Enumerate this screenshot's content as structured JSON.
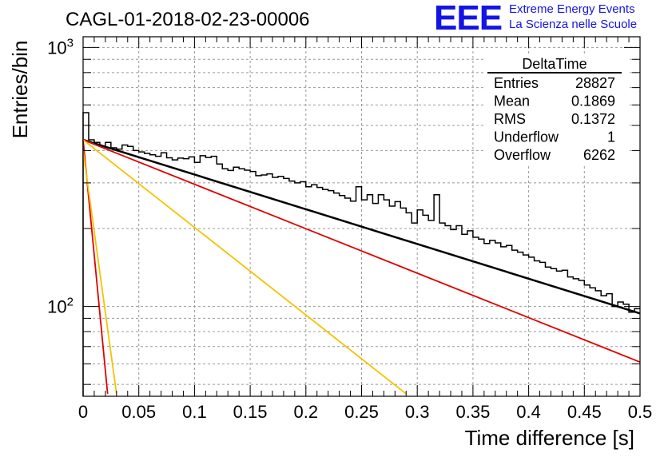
{
  "header": {
    "run_title": "CAGL-01-2018-02-23-00006",
    "logo_text": "EEE",
    "logo_line1": "Extreme Energy Events",
    "logo_line2": "La Scienza nelle Scuole"
  },
  "stats_box": {
    "title": "DeltaTime",
    "rows": [
      {
        "label": "Entries",
        "value": "28827"
      },
      {
        "label": "Mean",
        "value": "0.1869"
      },
      {
        "label": "RMS",
        "value": "0.1372"
      },
      {
        "label": "Underflow",
        "value": "1"
      },
      {
        "label": "Overflow",
        "value": "6262"
      }
    ]
  },
  "chart_data": {
    "type": "line",
    "title": "CAGL-01-2018-02-23-00006",
    "xlabel": "Time difference [s]",
    "ylabel": "Entries/bin",
    "xlim": [
      0,
      0.5
    ],
    "ylim": [
      45,
      1100
    ],
    "yscale": "log",
    "grid": true,
    "x_ticks": [
      "0",
      "0.05",
      "0.1",
      "0.15",
      "0.2",
      "0.25",
      "0.3",
      "0.35",
      "0.4",
      "0.45",
      "0.5"
    ],
    "y_ticks": [
      {
        "value": 100,
        "base": "10",
        "exp": "2"
      },
      {
        "value": 1000,
        "base": "10",
        "exp": "3"
      }
    ],
    "histogram": {
      "bin_width": 0.005,
      "values": [
        560,
        440,
        430,
        415,
        430,
        410,
        405,
        420,
        415,
        400,
        395,
        390,
        385,
        380,
        392,
        375,
        368,
        374,
        372,
        378,
        360,
        382,
        376,
        380,
        355,
        340,
        335,
        345,
        340,
        336,
        332,
        320,
        322,
        325,
        315,
        318,
        312,
        305,
        300,
        303,
        290,
        295,
        288,
        283,
        280,
        274,
        268,
        262,
        255,
        290,
        258,
        270,
        250,
        270,
        258,
        244,
        254,
        240,
        230,
        210,
        236,
        225,
        215,
        270,
        210,
        205,
        198,
        205,
        190,
        196,
        185,
        182,
        175,
        180,
        176,
        170,
        172,
        165,
        162,
        158,
        155,
        150,
        148,
        142,
        140,
        137,
        138,
        130,
        128,
        126,
        121,
        118,
        115,
        110,
        112,
        100,
        104,
        102,
        95,
        98
      ]
    },
    "series": [
      {
        "kind": "total-fit",
        "color": "#000000",
        "x": [
          0,
          0.5
        ],
        "y": [
          440,
          94
        ]
      },
      {
        "kind": "slow-component",
        "color": "#e00000",
        "x": [
          0,
          0.5
        ],
        "y": [
          440,
          61
        ]
      },
      {
        "kind": "fast-component",
        "color": "#e00000",
        "x": [
          0,
          0.022
        ],
        "y": [
          440,
          46
        ]
      },
      {
        "kind": "medium-component",
        "color": "#f5c200",
        "x": [
          0,
          0.29
        ],
        "y": [
          440,
          46
        ]
      },
      {
        "kind": "steep-component",
        "color": "#f5c200",
        "x": [
          0,
          0.03
        ],
        "y": [
          400,
          46
        ]
      }
    ]
  }
}
